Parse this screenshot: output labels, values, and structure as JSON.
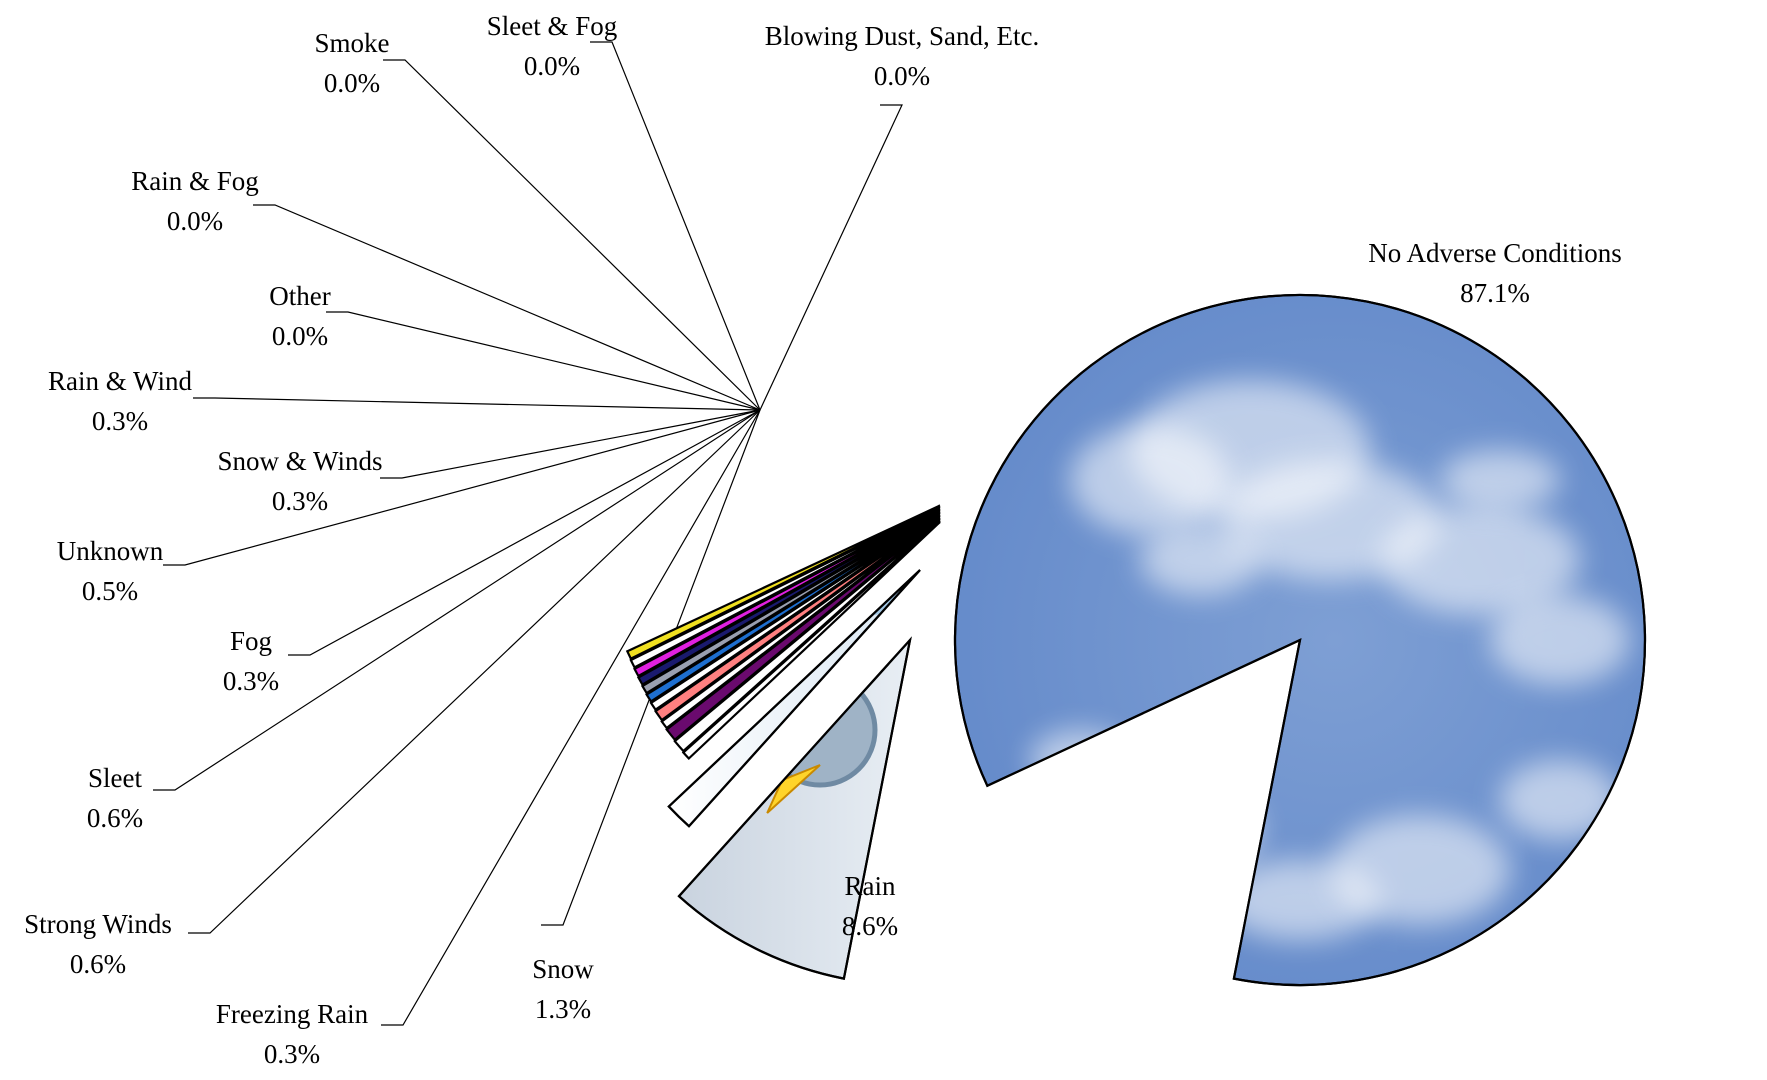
{
  "chart_data": {
    "type": "pie",
    "title": "",
    "exploded": true,
    "legend": "none",
    "slices": [
      {
        "label": "No Adverse Conditions",
        "pct_label": "87.1%",
        "value": 87.1,
        "fill": "sky"
      },
      {
        "label": "Rain",
        "pct_label": "8.6%",
        "value": 8.6,
        "fill": "storm"
      },
      {
        "label": "Snow",
        "pct_label": "1.3%",
        "value": 1.3,
        "fill": "snow"
      },
      {
        "label": "Freezing Rain",
        "pct_label": "0.3%",
        "value": 0.3,
        "fill": "#ffffff"
      },
      {
        "label": "Strong Winds",
        "pct_label": "0.6%",
        "value": 0.6,
        "fill": "#ffffff"
      },
      {
        "label": "Sleet",
        "pct_label": "0.6%",
        "value": 0.6,
        "fill": "#6a0a6e"
      },
      {
        "label": "Fog",
        "pct_label": "0.3%",
        "value": 0.3,
        "fill": "#ffffff"
      },
      {
        "label": "Unknown",
        "pct_label": "0.5%",
        "value": 0.5,
        "fill": "#ff8080"
      },
      {
        "label": "Snow & Winds",
        "pct_label": "0.3%",
        "value": 0.3,
        "fill": "#ffffff"
      },
      {
        "label": "Rain & Wind",
        "pct_label": "0.3%",
        "value": 0.3,
        "fill": "#1e6fd0"
      },
      {
        "label": "Other",
        "pct_label": "0.0%",
        "value": 0.0,
        "fill": "#9aa0b0"
      },
      {
        "label": "Rain & Fog",
        "pct_label": "0.0%",
        "value": 0.0,
        "fill": "#1a1a6e"
      },
      {
        "label": "Smoke",
        "pct_label": "0.0%",
        "value": 0.0,
        "fill": "#e020e0"
      },
      {
        "label": "Sleet & Fog",
        "pct_label": "0.0%",
        "value": 0.0,
        "fill": "#ffffff"
      },
      {
        "label": "Blowing Dust, Sand, Etc.",
        "pct_label": "0.0%",
        "value": 0.0,
        "fill": "#f0e020"
      }
    ]
  }
}
